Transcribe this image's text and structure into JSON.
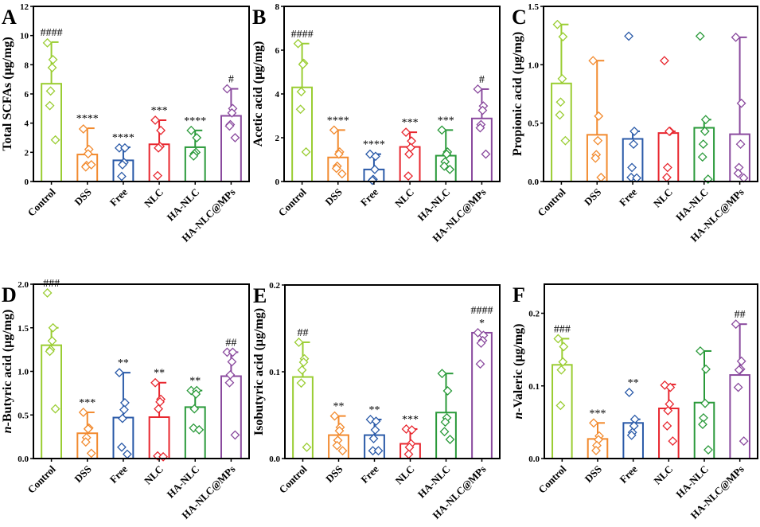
{
  "figure": {
    "colors": {
      "Control": "#9acd32",
      "DSS": "#f28a2e",
      "Free": "#2a5aa8",
      "NLC": "#e8262e",
      "HA-NLC": "#2a9a3a",
      "HA-NLC@MPs": "#8a4a9e"
    }
  },
  "chart_data": [
    {
      "type": "bar",
      "panel": "A",
      "ylabel": "Total SCFAs (μg/mg)",
      "ylim": [
        0,
        12
      ],
      "yticks": [
        0,
        2,
        4,
        6,
        8,
        10,
        12
      ],
      "categories": [
        "Control",
        "DSS",
        "Free",
        "NLC",
        "HA-NLC",
        "HA-NLC@MPs"
      ],
      "values": [
        6.7,
        1.85,
        1.45,
        2.55,
        2.35,
        4.5
      ],
      "error_upper": [
        9.55,
        3.65,
        2.35,
        4.2,
        3.5,
        6.35
      ],
      "points": [
        [
          9.5,
          8.35,
          7.8,
          6.2,
          5.2,
          2.85
        ],
        [
          3.6,
          2.2,
          1.9,
          1.1,
          1.0,
          1.15
        ],
        [
          2.3,
          2.3,
          1.3,
          1.15,
          0.35
        ],
        [
          4.2,
          3.5,
          2.4,
          2.3,
          0.4
        ],
        [
          3.5,
          3.0,
          2.0,
          1.9,
          1.75
        ],
        [
          6.35,
          5.0,
          4.7,
          3.9,
          3.8,
          3.0
        ]
      ],
      "annotations": [
        "####",
        "****",
        "****",
        "***",
        "****",
        "#"
      ]
    },
    {
      "type": "bar",
      "panel": "B",
      "ylabel": "Acetic acid (μg/mg)",
      "ylim": [
        0,
        8
      ],
      "yticks": [
        0,
        2,
        4,
        6,
        8
      ],
      "categories": [
        "Control",
        "DSS",
        "Free",
        "NLC",
        "HA-NLC",
        "HA-NLC@MPs"
      ],
      "values": [
        4.3,
        1.1,
        0.55,
        1.58,
        1.18,
        2.88
      ],
      "error_upper": [
        6.3,
        2.35,
        1.25,
        2.25,
        2.35,
        4.22
      ],
      "points": [
        [
          6.3,
          5.4,
          5.35,
          4.1,
          3.3,
          1.35
        ],
        [
          2.35,
          1.35,
          1.25,
          0.7,
          0.6,
          0.35
        ],
        [
          1.25,
          1.15,
          0.55,
          0.1,
          0.05
        ],
        [
          2.25,
          1.85,
          1.55,
          1.25,
          0.25
        ],
        [
          2.35,
          1.35,
          1.25,
          0.9,
          0.7,
          0.55
        ],
        [
          4.22,
          3.45,
          3.25,
          2.6,
          2.45,
          1.25
        ]
      ],
      "annotations": [
        "####",
        "****",
        "****",
        "***",
        "***",
        "#"
      ]
    },
    {
      "type": "bar",
      "panel": "C",
      "ylabel": "Propionic acid (μg/mg)",
      "ylim": [
        0,
        1.5
      ],
      "yticks": [
        0.0,
        0.5,
        1.0,
        1.5
      ],
      "categories": [
        "Control",
        "DSS",
        "Free",
        "NLC",
        "HA-NLC",
        "HA-NLC@MPs"
      ],
      "values": [
        0.84,
        0.4,
        0.365,
        0.415,
        0.46,
        0.405
      ],
      "error_upper": [
        1.345,
        1.035,
        0.43,
        0.43,
        0.53,
        1.235
      ],
      "points": [
        [
          1.345,
          1.24,
          0.88,
          0.68,
          0.57,
          0.35
        ],
        [
          1.035,
          0.56,
          0.35,
          0.23,
          0.2,
          0.035
        ],
        [
          1.245,
          0.43,
          0.32,
          0.12,
          0.035,
          0.03
        ],
        [
          1.035,
          0.43,
          0.43,
          0.12,
          0.035
        ],
        [
          1.245,
          0.53,
          0.43,
          0.32,
          0.21,
          0.02
        ],
        [
          1.235,
          0.67,
          0.32,
          0.12,
          0.07,
          0.03
        ]
      ],
      "annotations": [
        "",
        "",
        "",
        "",
        "",
        ""
      ]
    },
    {
      "type": "bar",
      "panel": "D",
      "ylabel": "n-Butyric acid (μg/mg)",
      "ylabel_italic_prefix": "n",
      "ylim": [
        0,
        2.0
      ],
      "yticks": [
        0.0,
        0.5,
        1.0,
        1.5,
        2.0
      ],
      "categories": [
        "Control",
        "DSS",
        "Free",
        "NLC",
        "HA-NLC",
        "HA-NLC@MPs"
      ],
      "values": [
        1.3,
        0.29,
        0.47,
        0.475,
        0.59,
        0.945
      ],
      "error_upper": [
        1.5,
        0.53,
        0.985,
        0.87,
        0.78,
        1.22
      ],
      "points": [
        [
          1.9,
          1.5,
          1.35,
          1.25,
          1.23,
          0.57
        ],
        [
          0.53,
          0.35,
          0.34,
          0.24,
          0.19,
          0.06
        ],
        [
          0.985,
          0.64,
          0.56,
          0.46,
          0.13,
          0.05
        ],
        [
          0.87,
          0.68,
          0.65,
          0.57,
          0.03,
          0.02
        ],
        [
          0.78,
          0.78,
          0.74,
          0.57,
          0.35,
          0.33
        ],
        [
          1.22,
          1.22,
          1.11,
          0.96,
          0.87,
          0.27
        ]
      ],
      "annotations": [
        "###",
        "***",
        "**",
        "**",
        "**",
        "##"
      ]
    },
    {
      "type": "bar",
      "panel": "E",
      "ylabel": "Isobutyric acid (μg/mg)",
      "ylim": [
        0,
        0.2
      ],
      "yticks": [
        0.0,
        0.1,
        0.2
      ],
      "categories": [
        "Control",
        "DSS",
        "Free",
        "NLC",
        "HA-NLC",
        "HA-NLC@MPs"
      ],
      "values": [
        0.094,
        0.027,
        0.027,
        0.017,
        0.053,
        0.145
      ],
      "error_upper": [
        0.134,
        0.049,
        0.045,
        0.034,
        0.098,
        0.145
      ],
      "points": [
        [
          0.134,
          0.115,
          0.111,
          0.102,
          0.087,
          0.013
        ],
        [
          0.049,
          0.036,
          0.032,
          0.021,
          0.015,
          0.009
        ],
        [
          0.045,
          0.043,
          0.033,
          0.023,
          0.009,
          0.009
        ],
        [
          0.034,
          0.033,
          0.017,
          0.013,
          0.005
        ],
        [
          0.098,
          0.078,
          0.047,
          0.042,
          0.031,
          0.022
        ],
        [
          0.145,
          0.142,
          0.136,
          0.133,
          0.109
        ]
      ],
      "annotations": [
        "##",
        "**",
        "**",
        "***",
        "",
        "####\n*"
      ]
    },
    {
      "type": "bar",
      "panel": "F",
      "ylabel": "n-Valeric (μg/mg)",
      "ylabel_italic_prefix": "n",
      "ylim": [
        0,
        0.24
      ],
      "yticks": [
        0.0,
        0.1,
        0.2
      ],
      "categories": [
        "Control",
        "DSS",
        "Free",
        "NLC",
        "HA-NLC",
        "HA-NLC@MPs"
      ],
      "values": [
        0.129,
        0.027,
        0.049,
        0.069,
        0.077,
        0.115
      ],
      "error_upper": [
        0.165,
        0.049,
        0.054,
        0.102,
        0.148,
        0.185
      ],
      "points": [
        [
          0.165,
          0.154,
          0.133,
          0.122,
          0.073
        ],
        [
          0.049,
          0.031,
          0.026,
          0.018,
          0.011
        ],
        [
          0.091,
          0.054,
          0.045,
          0.036,
          0.032
        ],
        [
          0.101,
          0.098,
          0.075,
          0.066,
          0.045,
          0.024
        ],
        [
          0.148,
          0.123,
          0.076,
          0.056,
          0.047,
          0.012
        ],
        [
          0.185,
          0.134,
          0.123,
          0.122,
          0.098,
          0.024
        ]
      ],
      "annotations": [
        "###",
        "***",
        "**",
        "",
        "",
        "##"
      ]
    }
  ]
}
